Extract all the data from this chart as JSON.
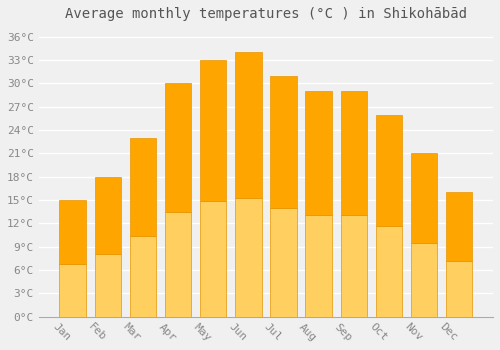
{
  "title": "Average monthly temperatures (°C ) in Shikohābād",
  "months": [
    "Jan",
    "Feb",
    "Mar",
    "Apr",
    "May",
    "Jun",
    "Jul",
    "Aug",
    "Sep",
    "Oct",
    "Nov",
    "Dec"
  ],
  "values": [
    15,
    18,
    23,
    30,
    33,
    34,
    31,
    29,
    29,
    26,
    21,
    16
  ],
  "bar_color_top": "#FFA500",
  "bar_color_bottom": "#FFD050",
  "bar_edge_color": "#E89500",
  "background_color": "#F0F0F0",
  "grid_color": "#FFFFFF",
  "ylim": [
    0,
    37
  ],
  "yticks": [
    0,
    3,
    6,
    9,
    12,
    15,
    18,
    21,
    24,
    27,
    30,
    33,
    36
  ],
  "ytick_labels": [
    "0°C",
    "3°C",
    "6°C",
    "9°C",
    "12°C",
    "15°C",
    "18°C",
    "21°C",
    "24°C",
    "27°C",
    "30°C",
    "33°C",
    "36°C"
  ],
  "title_fontsize": 10,
  "tick_fontsize": 8,
  "tick_color": "#888888",
  "figsize": [
    5.0,
    3.5
  ],
  "dpi": 100,
  "bar_width": 0.75,
  "xlabel_rotation": -45
}
